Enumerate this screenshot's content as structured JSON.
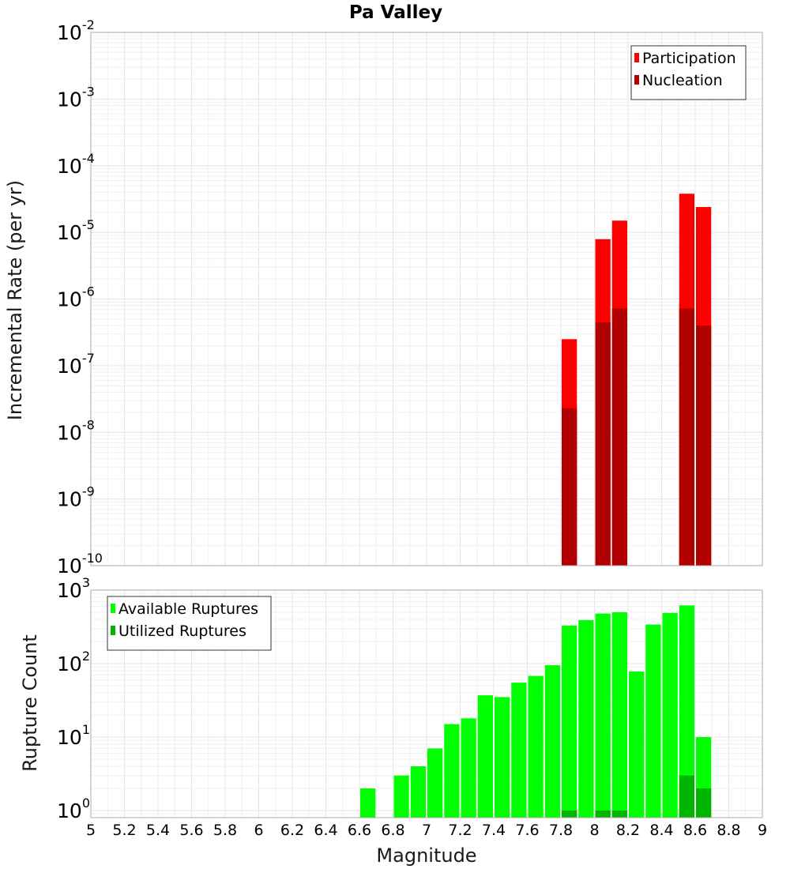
{
  "title": "Pa Valley",
  "colors": {
    "participation": "#ff0000",
    "nucleation": "#b00000",
    "available": "#00ff00",
    "utilized": "#00b400"
  },
  "chart_data": [
    {
      "type": "bar",
      "title": "Pa Valley",
      "xlabel": "Magnitude",
      "ylabel": "Incremental Rate (per yr)",
      "yscale": "log",
      "xlim": [
        5,
        9
      ],
      "ylim": [
        1e-10,
        0.01
      ],
      "yticks": [
        {
          "base": "10",
          "exp": "-10",
          "value": 1e-10
        },
        {
          "base": "10",
          "exp": "-9",
          "value": 1e-09
        },
        {
          "base": "10",
          "exp": "-8",
          "value": 1e-08
        },
        {
          "base": "10",
          "exp": "-7",
          "value": 1e-07
        },
        {
          "base": "10",
          "exp": "-6",
          "value": 1e-06
        },
        {
          "base": "10",
          "exp": "-5",
          "value": 1e-05
        },
        {
          "base": "10",
          "exp": "-4",
          "value": 0.0001
        },
        {
          "base": "10",
          "exp": "-3",
          "value": 0.001
        },
        {
          "base": "10",
          "exp": "-2",
          "value": 0.01
        }
      ],
      "legend_position": "top-right",
      "grid": true,
      "series": [
        {
          "name": "Participation",
          "x": [
            7.85,
            8.05,
            8.15,
            8.55,
            8.65
          ],
          "values": [
            2.5e-07,
            7.9e-06,
            1.5e-05,
            3.8e-05,
            2.4e-05
          ]
        },
        {
          "name": "Nucleation",
          "x": [
            7.85,
            8.05,
            8.15,
            8.55,
            8.65
          ],
          "values": [
            2.3e-08,
            4.5e-07,
            7.2e-07,
            7.2e-07,
            4e-07
          ]
        }
      ]
    },
    {
      "type": "bar",
      "xlabel": "Magnitude",
      "ylabel": "Rupture Count",
      "yscale": "log",
      "xlim": [
        5,
        9
      ],
      "ylim": [
        0.8,
        1000
      ],
      "yticks": [
        {
          "base": "10",
          "exp": "0",
          "value": 1
        },
        {
          "base": "10",
          "exp": "1",
          "value": 10
        },
        {
          "base": "10",
          "exp": "2",
          "value": 100
        },
        {
          "base": "10",
          "exp": "3",
          "value": 1000
        }
      ],
      "xticks": [
        "5",
        "5.2",
        "5.4",
        "5.6",
        "5.8",
        "6",
        "6.2",
        "6.4",
        "6.6",
        "6.8",
        "7",
        "7.2",
        "7.4",
        "7.6",
        "7.8",
        "8",
        "8.2",
        "8.4",
        "8.6",
        "8.8",
        "9"
      ],
      "legend_position": "top-left",
      "grid": true,
      "series": [
        {
          "name": "Available Ruptures",
          "x": [
            6.65,
            6.85,
            6.95,
            7.05,
            7.15,
            7.25,
            7.35,
            7.45,
            7.55,
            7.65,
            7.75,
            7.85,
            7.95,
            8.05,
            8.15,
            8.25,
            8.35,
            8.45,
            8.55,
            8.65
          ],
          "values": [
            2,
            3,
            4,
            7,
            15,
            18,
            37,
            35,
            55,
            68,
            95,
            330,
            390,
            480,
            500,
            78,
            340,
            490,
            620,
            10
          ]
        },
        {
          "name": "Utilized Ruptures",
          "x": [
            7.85,
            8.05,
            8.15,
            8.55,
            8.65
          ],
          "values": [
            1,
            1,
            1,
            3,
            2
          ]
        }
      ]
    }
  ]
}
